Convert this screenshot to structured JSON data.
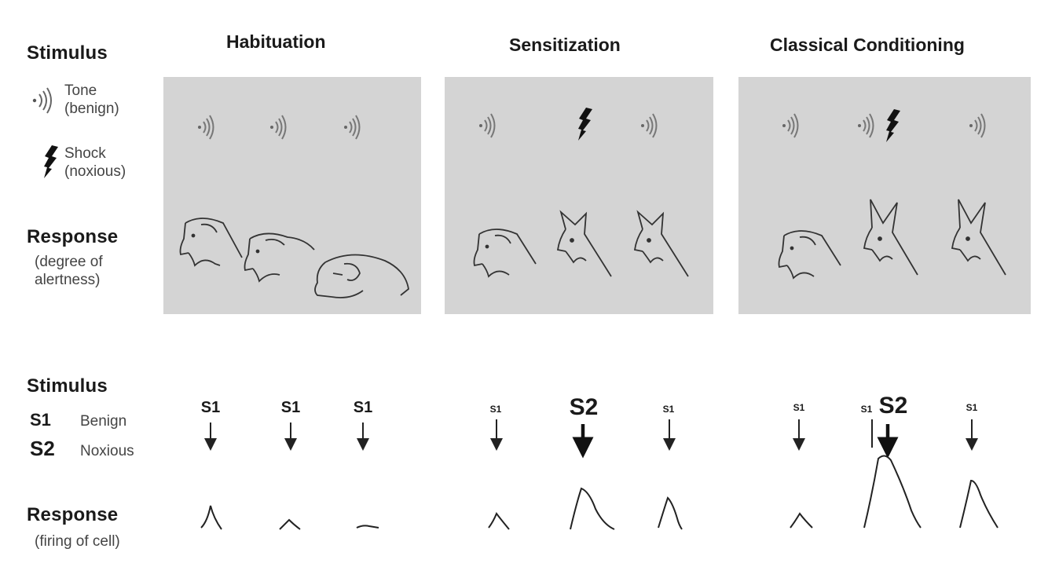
{
  "legend": {
    "stimulus_heading": "Stimulus",
    "tone_label_1": "Tone",
    "tone_label_2": "(benign)",
    "shock_label_1": "Shock",
    "shock_label_2": "(noxious)",
    "response_heading": "Response",
    "response_sub_1": "(degree of",
    "response_sub_2": "alertness)"
  },
  "columns": [
    {
      "title": "Habituation"
    },
    {
      "title": "Sensitization"
    },
    {
      "title": "Classical Conditioning"
    }
  ],
  "lower_legend": {
    "stimulus_heading": "Stimulus",
    "s1_code": "S1",
    "s1_desc": "Benign",
    "s2_code": "S2",
    "s2_desc": "Noxious",
    "response_heading": "Response",
    "response_sub": "(firing of cell)"
  },
  "stimulus_labels": {
    "s1": "S1",
    "s2": "S2"
  },
  "colors": {
    "panel_bg": "#d4d4d4",
    "ink": "#1a1a1a"
  }
}
